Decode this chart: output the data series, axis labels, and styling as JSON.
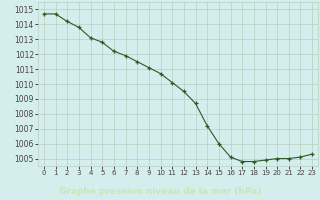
{
  "x": [
    0,
    1,
    2,
    3,
    4,
    5,
    6,
    7,
    8,
    9,
    10,
    11,
    12,
    13,
    14,
    15,
    16,
    17,
    18,
    19,
    20,
    21,
    22,
    23
  ],
  "y": [
    1014.7,
    1014.7,
    1014.2,
    1013.8,
    1013.1,
    1012.8,
    1012.2,
    1011.9,
    1011.5,
    1011.1,
    1010.7,
    1010.1,
    1009.5,
    1008.7,
    1007.2,
    1006.0,
    1005.1,
    1004.8,
    1004.8,
    1004.9,
    1005.0,
    1005.0,
    1005.1,
    1005.3
  ],
  "ylim": [
    1004.5,
    1015.5
  ],
  "yticks": [
    1005,
    1006,
    1007,
    1008,
    1009,
    1010,
    1011,
    1012,
    1013,
    1014,
    1015
  ],
  "xticks": [
    0,
    1,
    2,
    3,
    4,
    5,
    6,
    7,
    8,
    9,
    10,
    11,
    12,
    13,
    14,
    15,
    16,
    17,
    18,
    19,
    20,
    21,
    22,
    23
  ],
  "line_color": "#2d5a27",
  "marker_color": "#2d5a27",
  "bg_color": "#d4eeed",
  "grid_color": "#b8cfc0",
  "bottom_bar_color": "#2d6b25",
  "bottom_text_color": "#c8e8b0",
  "axis_label_color": "#4a4040",
  "xlabel": "Graphe pression niveau de la mer (hPa)"
}
